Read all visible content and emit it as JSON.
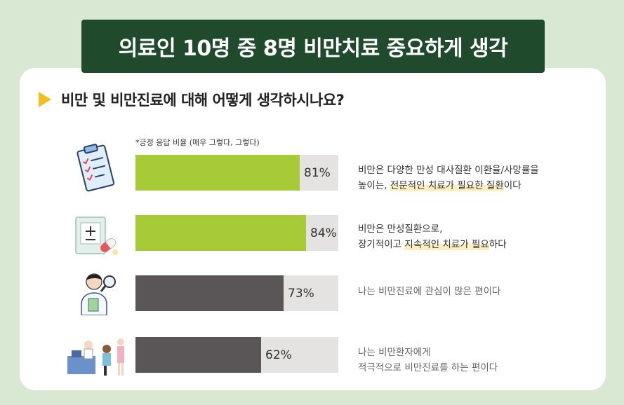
{
  "title": "의료인 10명 중 8명 비만치료 중요하게 생각",
  "question": "비만 및 비만진료에 대해 어떻게 생각하시나요?",
  "note": "*긍정 응답 비율 (매우 그렇다, 그렇다)",
  "colors": {
    "green": "#a6cb37",
    "dark": "#5a5657",
    "track": "#e4e3e1",
    "title_bg": "#1f4a2b",
    "arrow": "#f4c01b"
  },
  "rows": [
    {
      "icon": "clipboard-checklist-icon",
      "label": "81%",
      "color": "green",
      "desc1": "비만은 다양한 만성 대사질환 이환율/사망률을",
      "desc2a": "높이는, ",
      "desc2b": "전문적인 치료가 필요한 질환",
      "desc2c": "이다"
    },
    {
      "icon": "medical-kit-pill-icon",
      "label": "84%",
      "color": "green",
      "desc1": "비만은 만성질환으로,",
      "desc2a": "장기적이고 ",
      "desc2b": "지속적인 치료가 필요",
      "desc2c": "하다"
    },
    {
      "icon": "doctor-magnifier-icon",
      "label": "73%",
      "color": "dark",
      "desc1": "나는 비만진료에 관심이 많은 편이다",
      "desc2a": "",
      "desc2b": "",
      "desc2c": ""
    },
    {
      "icon": "clinic-consultation-icon",
      "label": "62%",
      "color": "dark",
      "desc1": "나는 비만환자에게",
      "desc2a": "적극적으로 비만진료를 하는 편이다",
      "desc2b": "",
      "desc2c": ""
    }
  ],
  "chart_data": {
    "type": "bar",
    "orientation": "horizontal",
    "categories": [
      "비만은 다양한 만성 대사질환 이환율/사망률을 높이는, 전문적인 치료가 필요한 질환이다",
      "비만은 만성질환으로, 장기적이고 지속적인 치료가 필요하다",
      "나는 비만진료에 관심이 많은 편이다",
      "나는 비만환자에게 적극적으로 비만진료를 하는 편이다"
    ],
    "values": [
      81,
      84,
      73,
      62
    ],
    "data_labels": [
      "81%",
      "84%",
      "73%",
      "62%"
    ],
    "xlim": [
      0,
      100
    ],
    "title": "의료인 10명 중 8명 비만치료 중요하게 생각",
    "subtitle": "비만 및 비만진료에 대해 어떻게 생각하시나요?",
    "annotation": "*긍정 응답 비율 (매우 그렇다, 그렇다)",
    "grid": false
  }
}
